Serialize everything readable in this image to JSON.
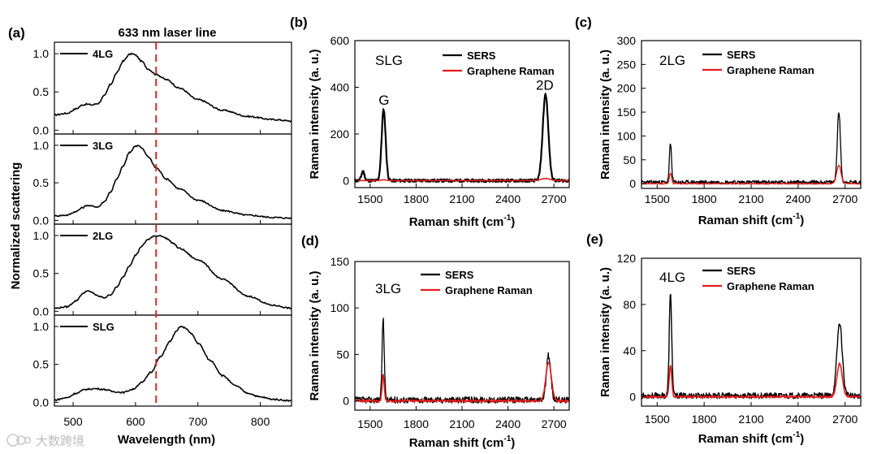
{
  "watermark": "大数跨境",
  "chart_data": [
    {
      "id": "a",
      "type": "line",
      "panel_label": "(a)",
      "title": "633 nm laser line",
      "xlabel": "Wavelength (nm)",
      "ylabel": "Normalized scattering",
      "xlim": [
        470,
        850
      ],
      "xticks": [
        500,
        600,
        700,
        800
      ],
      "ylim": [
        -0.05,
        1.15
      ],
      "yticks": [
        0.0,
        0.5,
        1.0
      ],
      "ytick_labels": [
        "0.0",
        "0.5",
        "1.0"
      ],
      "laser_line": 633,
      "colors": {
        "spectrum": "#000000",
        "laser": "#d62728"
      },
      "subpanels": [
        {
          "label": "4LG",
          "x": [
            470,
            490,
            505,
            515,
            522,
            530,
            540,
            550,
            560,
            570,
            580,
            590,
            595,
            600,
            610,
            620,
            633,
            650,
            670,
            700,
            740,
            780,
            820,
            850
          ],
          "y": [
            0.2,
            0.22,
            0.28,
            0.33,
            0.34,
            0.33,
            0.35,
            0.45,
            0.6,
            0.75,
            0.9,
            0.99,
            1.0,
            0.98,
            0.9,
            0.8,
            0.73,
            0.66,
            0.55,
            0.4,
            0.26,
            0.18,
            0.14,
            0.12
          ]
        },
        {
          "label": "3LG",
          "x": [
            470,
            490,
            505,
            515,
            522,
            530,
            540,
            550,
            560,
            570,
            580,
            590,
            600,
            605,
            610,
            620,
            633,
            650,
            670,
            700,
            740,
            780,
            820,
            850
          ],
          "y": [
            0.06,
            0.07,
            0.12,
            0.17,
            0.2,
            0.19,
            0.18,
            0.25,
            0.38,
            0.55,
            0.72,
            0.9,
            0.99,
            1.0,
            0.96,
            0.85,
            0.7,
            0.55,
            0.42,
            0.27,
            0.13,
            0.07,
            0.04,
            0.03
          ]
        },
        {
          "label": "2LG",
          "x": [
            470,
            490,
            505,
            515,
            522,
            530,
            540,
            550,
            560,
            570,
            580,
            590,
            600,
            610,
            620,
            630,
            640,
            650,
            660,
            670,
            700,
            740,
            780,
            820,
            850
          ],
          "y": [
            0.04,
            0.06,
            0.14,
            0.23,
            0.27,
            0.25,
            0.2,
            0.18,
            0.22,
            0.32,
            0.45,
            0.6,
            0.74,
            0.86,
            0.95,
            0.99,
            1.0,
            0.96,
            0.9,
            0.83,
            0.68,
            0.42,
            0.2,
            0.08,
            0.04
          ]
        },
        {
          "label": "SLG",
          "x": [
            470,
            490,
            505,
            520,
            535,
            550,
            565,
            580,
            595,
            610,
            625,
            640,
            655,
            665,
            672,
            680,
            690,
            700,
            720,
            740,
            760,
            780,
            800,
            820,
            850
          ],
          "y": [
            0.03,
            0.06,
            0.12,
            0.17,
            0.18,
            0.17,
            0.14,
            0.13,
            0.17,
            0.26,
            0.4,
            0.6,
            0.8,
            0.93,
            1.0,
            0.98,
            0.9,
            0.78,
            0.55,
            0.35,
            0.22,
            0.12,
            0.07,
            0.04,
            0.02
          ]
        }
      ]
    },
    {
      "id": "b",
      "type": "line",
      "panel_label": "(b)",
      "sample": "SLG",
      "xlabel": "Raman shift (cm",
      "xlabel_sup": "-1",
      "xlabel_close": ")",
      "ylabel": "Raman intensity (a. u.)",
      "xlim": [
        1400,
        2800
      ],
      "xticks": [
        1500,
        1800,
        2100,
        2400,
        2700
      ],
      "ylim": [
        -30,
        600
      ],
      "yticks": [
        0,
        200,
        400,
        600
      ],
      "annotations": [
        {
          "text": "G",
          "x": 1590,
          "y": 325
        },
        {
          "text": "2D",
          "x": 2640,
          "y": 390
        }
      ],
      "series": [
        {
          "name": "SERS",
          "color": "#000000",
          "width": 2.2,
          "noise": 6,
          "baseline": 0,
          "peaks": [
            {
              "center": 1453,
              "height": 40,
              "width": 10
            },
            {
              "center": 1588,
              "height": 305,
              "width": 13
            },
            {
              "center": 2645,
              "height": 370,
              "width": 18
            }
          ]
        },
        {
          "name": "Graphene Raman",
          "color": "#e41a1c",
          "width": 1.6,
          "noise": 0.7,
          "baseline": 0,
          "peaks": [
            {
              "center": 1588,
              "height": 4,
              "width": 14
            },
            {
              "center": 2645,
              "height": 9,
              "width": 30
            }
          ]
        }
      ]
    },
    {
      "id": "c",
      "type": "line",
      "panel_label": "(c)",
      "sample": "2LG",
      "xlabel": "Raman shift (cm",
      "xlabel_sup": "-1",
      "xlabel_close": ")",
      "ylabel": "Raman intensity (a. u.)",
      "xlim": [
        1400,
        2800
      ],
      "xticks": [
        1500,
        1800,
        2100,
        2400,
        2700
      ],
      "ylim": [
        -10,
        300
      ],
      "yticks": [
        0,
        50,
        100,
        150,
        200,
        250,
        300
      ],
      "series": [
        {
          "name": "SERS",
          "color": "#000000",
          "width": 1.3,
          "noise": 4,
          "baseline": 3,
          "peaks": [
            {
              "center": 1585,
              "height": 80,
              "width": 7
            },
            {
              "center": 2660,
              "height": 148,
              "width": 10
            }
          ]
        },
        {
          "name": "Graphene Raman",
          "color": "#e41a1c",
          "width": 1.3,
          "noise": 1.2,
          "baseline": 0,
          "peaks": [
            {
              "center": 1585,
              "height": 22,
              "width": 7
            },
            {
              "center": 2660,
              "height": 38,
              "width": 14
            }
          ]
        }
      ]
    },
    {
      "id": "d",
      "type": "line",
      "panel_label": "(d)",
      "sample": "3LG",
      "xlabel": "Raman shift (cm",
      "xlabel_sup": "-1",
      "xlabel_close": ")",
      "ylabel": "Raman intensity (a. u.)",
      "xlim": [
        1400,
        2800
      ],
      "xticks": [
        1500,
        1800,
        2100,
        2400,
        2700
      ],
      "ylim": [
        -10,
        150
      ],
      "yticks": [
        0,
        50,
        100,
        150
      ],
      "series": [
        {
          "name": "SERS",
          "color": "#000000",
          "width": 1.3,
          "noise": 3.5,
          "baseline": 1,
          "peaks": [
            {
              "center": 1585,
              "height": 88,
              "width": 7
            },
            {
              "center": 2665,
              "height": 48,
              "width": 14
            }
          ]
        },
        {
          "name": "Graphene Raman",
          "color": "#e41a1c",
          "width": 1.6,
          "noise": 1.2,
          "baseline": 0,
          "peaks": [
            {
              "center": 1585,
              "height": 28,
              "width": 7
            },
            {
              "center": 2665,
              "height": 42,
              "width": 18
            }
          ]
        }
      ]
    },
    {
      "id": "e",
      "type": "line",
      "panel_label": "(e)",
      "sample": "4LG",
      "xlabel": "Raman shift (cm",
      "xlabel_sup": "-1",
      "xlabel_close": ")",
      "ylabel": "Raman intensity (a. u.)",
      "xlim": [
        1400,
        2800
      ],
      "xticks": [
        1500,
        1800,
        2100,
        2400,
        2700
      ],
      "ylim": [
        -8,
        120
      ],
      "yticks": [
        0,
        40,
        80,
        120
      ],
      "series": [
        {
          "name": "SERS",
          "color": "#000000",
          "width": 1.4,
          "noise": 2.5,
          "baseline": 1,
          "peaks": [
            {
              "center": 1585,
              "height": 88,
              "width": 8
            },
            {
              "center": 2665,
              "height": 63,
              "width": 17
            }
          ]
        },
        {
          "name": "Graphene Raman",
          "color": "#e41a1c",
          "width": 1.6,
          "noise": 0.8,
          "baseline": 0,
          "peaks": [
            {
              "center": 1585,
              "height": 27,
              "width": 8
            },
            {
              "center": 2665,
              "height": 29,
              "width": 17
            }
          ]
        }
      ]
    }
  ]
}
